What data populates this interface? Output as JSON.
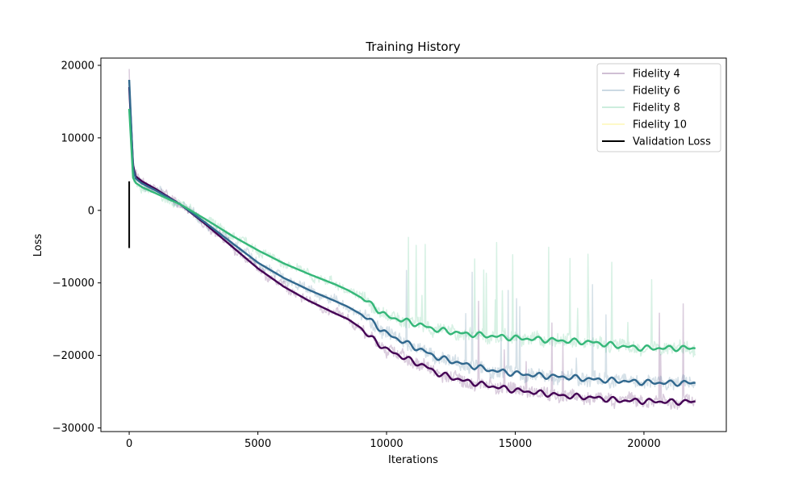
{
  "chart_data": {
    "type": "line",
    "title": "Training History",
    "xlabel": "Iterations",
    "ylabel": "Loss",
    "xlim": [
      -1100,
      23200
    ],
    "ylim": [
      -30500,
      21000
    ],
    "xticks": [
      0,
      5000,
      10000,
      15000,
      20000
    ],
    "yticks": [
      -30000,
      -20000,
      -10000,
      0,
      10000,
      20000
    ],
    "xtick_labels": [
      "0",
      "5000",
      "10000",
      "15000",
      "20000"
    ],
    "ytick_labels": [
      "−30000",
      "−20000",
      "−10000",
      "0",
      "10000",
      "20000"
    ],
    "grid": false,
    "legend_position": "top-right",
    "series": [
      {
        "name": "Fidelity 4",
        "color": "#440154",
        "x": [
          0,
          150,
          250,
          500,
          1000,
          2000,
          3000,
          4000,
          5000,
          6000,
          7000,
          8000,
          8500,
          9000,
          9300,
          10000,
          11000,
          11500,
          12000,
          13000,
          14000,
          15000,
          16000,
          17000,
          18000,
          19000,
          20000,
          21000,
          22000
        ],
        "y": [
          17000,
          6200,
          4700,
          4000,
          3000,
          800,
          -2000,
          -5000,
          -8000,
          -10500,
          -12500,
          -14200,
          -15000,
          -16200,
          -17300,
          -19200,
          -20800,
          -21500,
          -22500,
          -23500,
          -24200,
          -24800,
          -25200,
          -25600,
          -25800,
          -26200,
          -26300,
          -26400,
          -26400
        ]
      },
      {
        "name": "Fidelity 6",
        "color": "#31688e",
        "x": [
          0,
          150,
          250,
          500,
          1000,
          2000,
          3000,
          4000,
          5000,
          6000,
          7000,
          8000,
          8500,
          9000,
          9300,
          10000,
          11000,
          11500,
          12000,
          13000,
          14000,
          15000,
          16000,
          17000,
          18000,
          19000,
          20000,
          21000,
          22000
        ],
        "y": [
          18000,
          5800,
          4400,
          3700,
          2800,
          800,
          -1800,
          -4500,
          -7200,
          -9300,
          -11000,
          -12500,
          -13300,
          -14300,
          -15000,
          -17000,
          -18700,
          -19500,
          -20300,
          -21200,
          -22000,
          -22500,
          -22800,
          -23000,
          -23300,
          -23500,
          -23700,
          -23800,
          -23800
        ]
      },
      {
        "name": "Fidelity 8",
        "color": "#35b779",
        "x": [
          0,
          150,
          250,
          500,
          1000,
          2000,
          3000,
          4000,
          5000,
          6000,
          7000,
          8000,
          8500,
          9000,
          9300,
          10000,
          11000,
          11500,
          12000,
          13000,
          14000,
          15000,
          16000,
          17000,
          18000,
          19000,
          20000,
          21000,
          22000
        ],
        "y": [
          14000,
          4500,
          3800,
          3200,
          2400,
          800,
          -1300,
          -3500,
          -5500,
          -7300,
          -8800,
          -10200,
          -11000,
          -12000,
          -12700,
          -14600,
          -15500,
          -16000,
          -16500,
          -17000,
          -17300,
          -17600,
          -17800,
          -18000,
          -18200,
          -18700,
          -19000,
          -19000,
          -19000
        ]
      },
      {
        "name": "Fidelity 10",
        "color": "#fde725",
        "x": [],
        "y": []
      }
    ],
    "validation": {
      "name": "Validation Loss",
      "color": "#000000",
      "x": [
        0,
        0
      ],
      "y": [
        4000,
        -5200
      ]
    }
  }
}
